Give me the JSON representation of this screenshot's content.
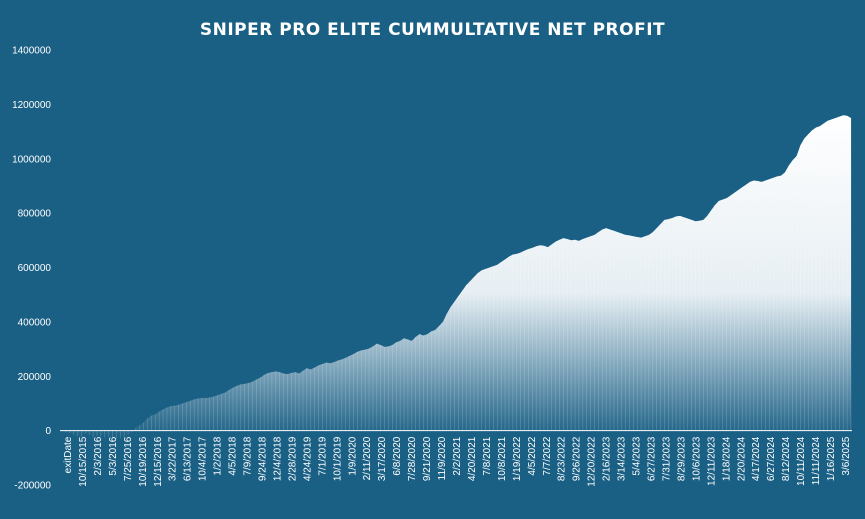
{
  "chart_data": {
    "type": "area",
    "title": "SNIPER PRO ELITE CUMMULTATIVE NET PROFIT",
    "xlabel": "",
    "ylabel": "",
    "ylim": [
      -200000,
      1400000
    ],
    "yticks": [
      -200000,
      0,
      200000,
      400000,
      600000,
      800000,
      1000000,
      1200000,
      1400000
    ],
    "ytick_labels": [
      "-200000",
      "0",
      "200000",
      "400000",
      "600000",
      "800000",
      "1000000",
      "1200000",
      "1400000"
    ],
    "x_tick_labels": [
      "exitDate",
      "10/15/2015",
      "2/3/2016",
      "5/3/2016",
      "7/25/2016",
      "10/19/2016",
      "12/15/2016",
      "3/22/2017",
      "6/13/2017",
      "10/4/2017",
      "1/2/2018",
      "4/5/2018",
      "7/9/2018",
      "9/24/2018",
      "12/4/2018",
      "2/28/2019",
      "4/24/2019",
      "7/1/2019",
      "10/1/2019",
      "1/9/2020",
      "2/11/2020",
      "3/17/2020",
      "6/8/2020",
      "7/28/2020",
      "9/21/2020",
      "11/9/2020",
      "2/2/2021",
      "4/20/2021",
      "7/8/2021",
      "10/8/2021",
      "1/19/2022",
      "4/5/2022",
      "7/7/2022",
      "8/23/2022",
      "9/26/2022",
      "12/20/2022",
      "2/16/2023",
      "3/14/2023",
      "5/4/2023",
      "6/27/2023",
      "7/31/2023",
      "8/29/2023",
      "10/6/2023",
      "12/11/2023",
      "1/18/2024",
      "2/20/2024",
      "4/17/2024",
      "6/27/2024",
      "8/12/2024",
      "10/11/2024",
      "11/11/2024",
      "1/16/2025",
      "3/6/2025"
    ],
    "series": [
      {
        "values": [
          0,
          -5000,
          -8000,
          -15000,
          -20000,
          -25000,
          -10000,
          -15000,
          -25000,
          -20000,
          -22000,
          -25000,
          -22000,
          -25000,
          -30000,
          -28000,
          -26000,
          -15000,
          -5000,
          10000,
          20000,
          30000,
          45000,
          55000,
          60000,
          70000,
          78000,
          85000,
          90000,
          92000,
          95000,
          100000,
          105000,
          110000,
          115000,
          118000,
          120000,
          120000,
          122000,
          125000,
          130000,
          135000,
          140000,
          150000,
          158000,
          165000,
          170000,
          172000,
          175000,
          180000,
          188000,
          195000,
          205000,
          212000,
          215000,
          218000,
          215000,
          210000,
          208000,
          212000,
          215000,
          210000,
          220000,
          230000,
          225000,
          232000,
          240000,
          245000,
          250000,
          248000,
          252000,
          258000,
          262000,
          268000,
          275000,
          282000,
          290000,
          295000,
          298000,
          302000,
          310000,
          320000,
          315000,
          308000,
          310000,
          315000,
          325000,
          330000,
          340000,
          335000,
          330000,
          345000,
          355000,
          350000,
          355000,
          365000,
          370000,
          385000,
          400000,
          430000,
          455000,
          475000,
          495000,
          515000,
          535000,
          550000,
          565000,
          580000,
          590000,
          595000,
          600000,
          605000,
          610000,
          620000,
          630000,
          640000,
          648000,
          650000,
          655000,
          662000,
          668000,
          672000,
          678000,
          682000,
          680000,
          675000,
          685000,
          695000,
          702000,
          708000,
          705000,
          700000,
          702000,
          698000,
          705000,
          710000,
          715000,
          720000,
          730000,
          740000,
          745000,
          740000,
          735000,
          730000,
          725000,
          720000,
          718000,
          715000,
          712000,
          710000,
          715000,
          720000,
          730000,
          745000,
          760000,
          775000,
          778000,
          782000,
          788000,
          790000,
          785000,
          780000,
          775000,
          770000,
          772000,
          775000,
          790000,
          810000,
          830000,
          845000,
          850000,
          855000,
          865000,
          875000,
          885000,
          895000,
          905000,
          915000,
          920000,
          918000,
          915000,
          920000,
          925000,
          930000,
          935000,
          938000,
          950000,
          975000,
          995000,
          1010000,
          1050000,
          1075000,
          1090000,
          1105000,
          1115000,
          1120000,
          1130000,
          1140000,
          1145000,
          1150000,
          1155000,
          1160000,
          1158000,
          1150000
        ]
      }
    ],
    "grid": false,
    "legend": "none",
    "colors": {
      "background": "#1a5f84",
      "area_top": "#ffffff",
      "area_bottom": "#1a5f84",
      "text": "#ffffff"
    }
  }
}
